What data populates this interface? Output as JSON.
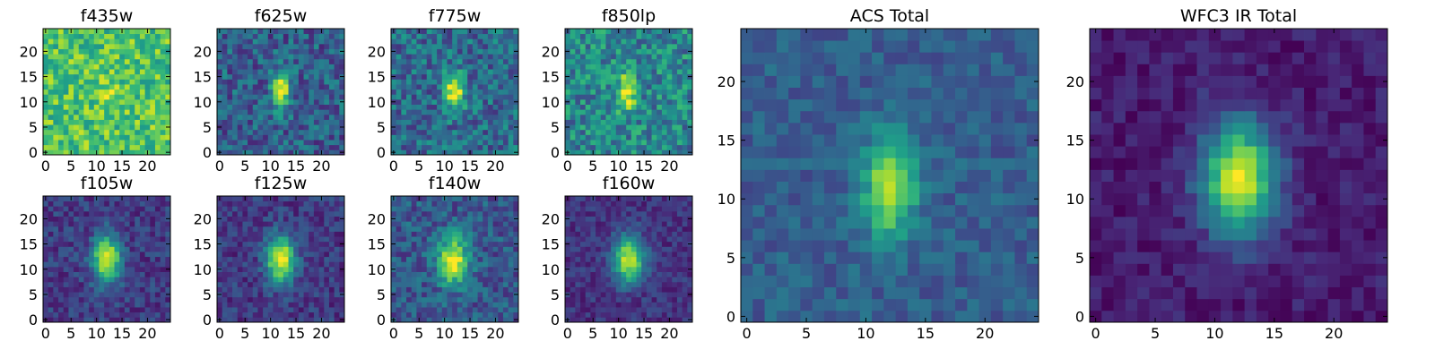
{
  "chart_data": [
    {
      "type": "heatmap",
      "title": "f435w",
      "xticks": [
        0,
        5,
        10,
        15,
        20
      ],
      "yticks": [
        0,
        5,
        10,
        15,
        20
      ],
      "xlim": [
        0,
        25
      ],
      "ylim": [
        0,
        25
      ],
      "grid_size": 25,
      "colormap": "viridis",
      "source": {
        "center": [
          12.5,
          12.5
        ],
        "sigma": [
          1.6,
          3.2
        ],
        "peak": 0.12,
        "background": 0.72,
        "noise": 0.2,
        "seed": 11
      }
    },
    {
      "type": "heatmap",
      "title": "f625w",
      "xticks": [
        0,
        5,
        10,
        15,
        20
      ],
      "yticks": [
        0,
        5,
        10,
        15,
        20
      ],
      "xlim": [
        0,
        25
      ],
      "ylim": [
        0,
        25
      ],
      "grid_size": 25,
      "colormap": "viridis",
      "source": {
        "center": [
          12.5,
          12.5
        ],
        "sigma": [
          1.3,
          2.6
        ],
        "peak": 0.72,
        "background": 0.3,
        "noise": 0.2,
        "seed": 21
      }
    },
    {
      "type": "heatmap",
      "title": "f775w",
      "xticks": [
        0,
        5,
        10,
        15,
        20
      ],
      "yticks": [
        0,
        5,
        10,
        15,
        20
      ],
      "xlim": [
        0,
        25
      ],
      "ylim": [
        0,
        25
      ],
      "grid_size": 25,
      "colormap": "viridis",
      "source": {
        "center": [
          12.5,
          12.5
        ],
        "sigma": [
          1.3,
          2.6
        ],
        "peak": 0.7,
        "background": 0.35,
        "noise": 0.2,
        "seed": 31
      }
    },
    {
      "type": "heatmap",
      "title": "f850lp",
      "xticks": [
        0,
        5,
        10,
        15,
        20
      ],
      "yticks": [
        0,
        5,
        10,
        15,
        20
      ],
      "xlim": [
        0,
        25
      ],
      "ylim": [
        0,
        25
      ],
      "grid_size": 25,
      "colormap": "viridis",
      "source": {
        "center": [
          12.3,
          12.5
        ],
        "sigma": [
          1.3,
          2.6
        ],
        "peak": 0.52,
        "background": 0.46,
        "noise": 0.22,
        "seed": 41
      }
    },
    {
      "type": "heatmap",
      "title": "f105w",
      "xticks": [
        0,
        5,
        10,
        15,
        20
      ],
      "yticks": [
        0,
        5,
        10,
        15,
        20
      ],
      "xlim": [
        0,
        25
      ],
      "ylim": [
        0,
        25
      ],
      "grid_size": 25,
      "colormap": "viridis",
      "source": {
        "center": [
          12.5,
          12.5
        ],
        "sigma": [
          1.9,
          3.2
        ],
        "peak": 0.82,
        "background": 0.18,
        "noise": 0.12,
        "seed": 51
      }
    },
    {
      "type": "heatmap",
      "title": "f125w",
      "xticks": [
        0,
        5,
        10,
        15,
        20
      ],
      "yticks": [
        0,
        5,
        10,
        15,
        20
      ],
      "xlim": [
        0,
        25
      ],
      "ylim": [
        0,
        25
      ],
      "grid_size": 25,
      "colormap": "viridis",
      "source": {
        "center": [
          12.5,
          12.5
        ],
        "sigma": [
          2.0,
          3.2
        ],
        "peak": 0.82,
        "background": 0.17,
        "noise": 0.12,
        "seed": 61
      }
    },
    {
      "type": "heatmap",
      "title": "f140w",
      "xticks": [
        0,
        5,
        10,
        15,
        20
      ],
      "yticks": [
        0,
        5,
        10,
        15,
        20
      ],
      "xlim": [
        0,
        25
      ],
      "ylim": [
        0,
        25
      ],
      "grid_size": 25,
      "colormap": "viridis",
      "source": {
        "center": [
          12.3,
          12.3
        ],
        "sigma": [
          2.0,
          3.4
        ],
        "peak": 0.7,
        "background": 0.28,
        "noise": 0.16,
        "seed": 71
      }
    },
    {
      "type": "heatmap",
      "title": "f160w",
      "xticks": [
        0,
        5,
        10,
        15,
        20
      ],
      "yticks": [
        0,
        5,
        10,
        15,
        20
      ],
      "xlim": [
        0,
        25
      ],
      "ylim": [
        0,
        25
      ],
      "grid_size": 25,
      "colormap": "viridis",
      "source": {
        "center": [
          12.5,
          12.5
        ],
        "sigma": [
          2.1,
          3.2
        ],
        "peak": 0.8,
        "background": 0.15,
        "noise": 0.1,
        "seed": 81
      }
    },
    {
      "type": "heatmap",
      "title": "ACS Total",
      "xticks": [
        0,
        5,
        10,
        15,
        20
      ],
      "yticks": [
        0,
        5,
        10,
        15,
        20
      ],
      "xlim": [
        0,
        25
      ],
      "ylim": [
        0,
        25
      ],
      "grid_size": 25,
      "colormap": "viridis",
      "source": {
        "center": [
          12.5,
          11.5
        ],
        "sigma": [
          1.5,
          3.0
        ],
        "peak": 0.62,
        "background": 0.3,
        "noise": 0.1,
        "seed": 91
      }
    },
    {
      "type": "heatmap",
      "title": "WFC3 IR Total",
      "xticks": [
        0,
        5,
        10,
        15,
        20
      ],
      "yticks": [
        0,
        5,
        10,
        15,
        20
      ],
      "xlim": [
        0,
        25
      ],
      "ylim": [
        0,
        25
      ],
      "grid_size": 25,
      "colormap": "viridis",
      "source": {
        "center": [
          12.5,
          12.3
        ],
        "sigma": [
          2.2,
          3.4
        ],
        "peak": 0.86,
        "background": 0.08,
        "noise": 0.08,
        "seed": 101
      }
    }
  ]
}
